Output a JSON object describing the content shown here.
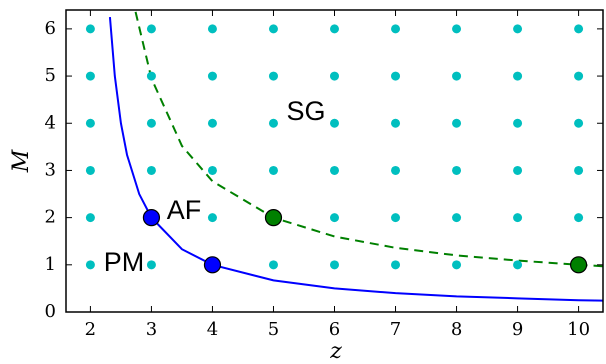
{
  "chart_data": {
    "type": "line",
    "xlabel": "z",
    "ylabel": "M",
    "xlim": [
      1.6,
      10.4
    ],
    "ylim": [
      0,
      6.4
    ],
    "xticks": [
      2,
      3,
      4,
      5,
      6,
      7,
      8,
      9,
      10
    ],
    "yticks": [
      0,
      1,
      2,
      3,
      4,
      5,
      6
    ],
    "series": [
      {
        "color": "#0000ff",
        "style": "solid",
        "x": [
          2.32,
          2.4,
          2.5,
          2.6,
          2.8,
          3,
          3.5,
          4,
          5,
          6,
          7,
          8,
          9,
          10,
          10.4
        ],
        "values": [
          6.25,
          5,
          4,
          3.33,
          2.5,
          2,
          1.33,
          1,
          0.67,
          0.5,
          0.4,
          0.33,
          0.29,
          0.25,
          0.24
        ]
      },
      {
        "color": "#008000",
        "style": "dashed",
        "x": [
          2.74,
          3,
          3.5,
          4,
          5,
          6,
          7,
          8,
          9,
          10,
          10.4
        ],
        "values": [
          6.36,
          4.95,
          3.52,
          2.77,
          2,
          1.6,
          1.36,
          1.2,
          1.09,
          1,
          0.97
        ]
      }
    ],
    "points": [
      {
        "color": "#00bfbf",
        "x": [
          2,
          3,
          4,
          5,
          6,
          7,
          8,
          9,
          10,
          2,
          3,
          4,
          5,
          6,
          7,
          8,
          9,
          10,
          2,
          3,
          4,
          5,
          6,
          7,
          8,
          9,
          10,
          2,
          3,
          4,
          5,
          6,
          7,
          8,
          9,
          10,
          2,
          3,
          4,
          5,
          6,
          7,
          8,
          9,
          10,
          2,
          3,
          4,
          5,
          6,
          7,
          8,
          9,
          10
        ],
        "values": [
          1,
          1,
          1,
          1,
          1,
          1,
          1,
          1,
          1,
          2,
          2,
          2,
          2,
          2,
          2,
          2,
          2,
          2,
          3,
          3,
          3,
          3,
          3,
          3,
          3,
          3,
          3,
          4,
          4,
          4,
          4,
          4,
          4,
          4,
          4,
          4,
          5,
          5,
          5,
          5,
          5,
          5,
          5,
          5,
          5,
          6,
          6,
          6,
          6,
          6,
          6,
          6,
          6,
          6
        ]
      },
      {
        "color": "#0000ff",
        "x": [
          3,
          4
        ],
        "values": [
          2,
          1
        ]
      },
      {
        "color": "#008000",
        "x": [
          5,
          10
        ],
        "values": [
          2,
          1
        ]
      }
    ],
    "annotations": [
      "SG",
      "AF",
      "PM"
    ]
  }
}
